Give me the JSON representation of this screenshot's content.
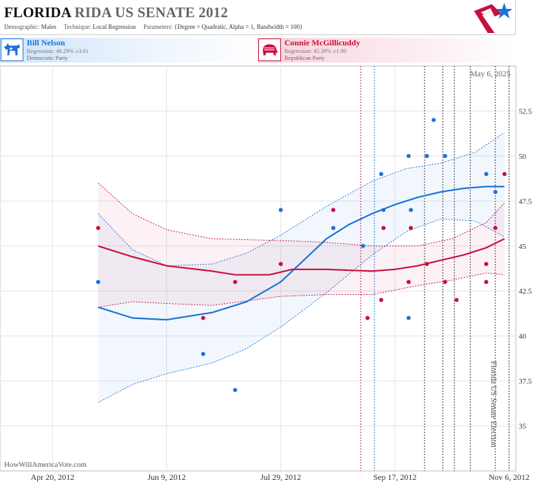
{
  "header": {
    "title_state": "FLORIDA",
    "title_rest": "RIDA US SENATE 2012",
    "demographic_label": "Demographic:",
    "demographic_value": "Males",
    "technique_label": "Technique:",
    "technique_value": "Local Regression",
    "parameters_label": "Parameters:",
    "parameters_value": "{Degree = Quadratic, Alpha = 1, Bandwidth = 100}"
  },
  "candidates": {
    "dem": {
      "name": "Bill Nelson",
      "regression": "Regression: 48.29% ±3.01",
      "party": "Democratic Party",
      "color": "#1a73d9"
    },
    "rep": {
      "name": "Connie McGillicuddy",
      "regression": "Regression: 45.39% ±1.98",
      "party": "Republican Party",
      "color": "#c8103e"
    }
  },
  "chart_date": "May 6, 2025",
  "election_label": "Florida US Senate Election",
  "watermark": "HowWillAmericaVote.com",
  "colors": {
    "dem": "#1a73d9",
    "rep": "#c8103e",
    "grid": "#e3e3e3"
  },
  "chart_data": {
    "type": "scatter",
    "x_type": "date",
    "xlim": [
      "2012-03-28",
      "2012-11-09"
    ],
    "ylim": [
      32.5,
      55
    ],
    "yticks": [
      35,
      37.5,
      40,
      42.5,
      45,
      47.5,
      50,
      52.5
    ],
    "ytick_labels": [
      "35",
      "37.5",
      "40",
      "42.5",
      "45",
      "47.5",
      "50",
      "52.5"
    ],
    "xticks": [
      "2012-04-20",
      "2012-06-09",
      "2012-07-29",
      "2012-09-17",
      "2012-11-06"
    ],
    "xtick_labels": [
      "Apr 20, 2012",
      "Jun 9, 2012",
      "Jul 29, 2012",
      "Sep 17, 2012",
      "Nov 6, 2012"
    ],
    "vlines": [
      {
        "date": "2012-09-02",
        "color": "#c8103e"
      },
      {
        "date": "2012-09-08",
        "color": "#1a73d9"
      },
      {
        "date": "2012-09-30",
        "color": "#333333"
      },
      {
        "date": "2012-10-08",
        "color": "#333333"
      },
      {
        "date": "2012-10-13",
        "color": "#333333"
      },
      {
        "date": "2012-10-20",
        "color": "#333333"
      },
      {
        "date": "2012-10-31",
        "color": "#333333"
      },
      {
        "date": "2012-11-06",
        "color": "#333333"
      }
    ],
    "series": [
      {
        "name": "Bill Nelson",
        "color": "#1a73d9",
        "points": [
          {
            "x": "2012-05-10",
            "y": 43
          },
          {
            "x": "2012-06-25",
            "y": 39
          },
          {
            "x": "2012-07-09",
            "y": 37
          },
          {
            "x": "2012-07-29",
            "y": 47
          },
          {
            "x": "2012-08-21",
            "y": 46
          },
          {
            "x": "2012-09-03",
            "y": 45
          },
          {
            "x": "2012-09-11",
            "y": 49
          },
          {
            "x": "2012-09-12",
            "y": 47
          },
          {
            "x": "2012-09-23",
            "y": 50
          },
          {
            "x": "2012-09-23",
            "y": 41
          },
          {
            "x": "2012-09-24",
            "y": 47
          },
          {
            "x": "2012-10-01",
            "y": 50
          },
          {
            "x": "2012-10-04",
            "y": 52
          },
          {
            "x": "2012-10-09",
            "y": 50
          },
          {
            "x": "2012-10-27",
            "y": 49
          },
          {
            "x": "2012-10-31",
            "y": 48
          }
        ],
        "trend": [
          {
            "x": "2012-05-10",
            "y": 41.6
          },
          {
            "x": "2012-05-25",
            "y": 41.0
          },
          {
            "x": "2012-06-09",
            "y": 40.9
          },
          {
            "x": "2012-06-29",
            "y": 41.3
          },
          {
            "x": "2012-07-14",
            "y": 41.9
          },
          {
            "x": "2012-07-29",
            "y": 43.0
          },
          {
            "x": "2012-08-08",
            "y": 44.2
          },
          {
            "x": "2012-08-18",
            "y": 45.4
          },
          {
            "x": "2012-08-28",
            "y": 46.2
          },
          {
            "x": "2012-09-07",
            "y": 46.8
          },
          {
            "x": "2012-09-17",
            "y": 47.3
          },
          {
            "x": "2012-09-27",
            "y": 47.7
          },
          {
            "x": "2012-10-07",
            "y": 48.0
          },
          {
            "x": "2012-10-17",
            "y": 48.2
          },
          {
            "x": "2012-10-27",
            "y": 48.3
          },
          {
            "x": "2012-11-04",
            "y": 48.3
          }
        ],
        "upper": [
          {
            "x": "2012-05-10",
            "y": 46.8
          },
          {
            "x": "2012-05-25",
            "y": 44.8
          },
          {
            "x": "2012-06-09",
            "y": 43.9
          },
          {
            "x": "2012-06-29",
            "y": 44.0
          },
          {
            "x": "2012-07-14",
            "y": 44.6
          },
          {
            "x": "2012-07-29",
            "y": 45.6
          },
          {
            "x": "2012-08-18",
            "y": 47.2
          },
          {
            "x": "2012-09-07",
            "y": 48.6
          },
          {
            "x": "2012-09-22",
            "y": 49.3
          },
          {
            "x": "2012-10-07",
            "y": 49.6
          },
          {
            "x": "2012-10-22",
            "y": 50.2
          },
          {
            "x": "2012-11-04",
            "y": 51.3
          }
        ],
        "lower": [
          {
            "x": "2012-05-10",
            "y": 36.3
          },
          {
            "x": "2012-05-25",
            "y": 37.3
          },
          {
            "x": "2012-06-09",
            "y": 37.9
          },
          {
            "x": "2012-06-29",
            "y": 38.5
          },
          {
            "x": "2012-07-14",
            "y": 39.3
          },
          {
            "x": "2012-07-29",
            "y": 40.5
          },
          {
            "x": "2012-08-18",
            "y": 42.4
          },
          {
            "x": "2012-09-07",
            "y": 44.5
          },
          {
            "x": "2012-09-22",
            "y": 45.8
          },
          {
            "x": "2012-10-07",
            "y": 46.5
          },
          {
            "x": "2012-10-22",
            "y": 46.4
          },
          {
            "x": "2012-11-04",
            "y": 45.5
          }
        ]
      },
      {
        "name": "Connie McGillicuddy",
        "color": "#c8103e",
        "points": [
          {
            "x": "2012-05-10",
            "y": 46
          },
          {
            "x": "2012-06-25",
            "y": 41
          },
          {
            "x": "2012-07-09",
            "y": 43
          },
          {
            "x": "2012-07-29",
            "y": 44
          },
          {
            "x": "2012-08-21",
            "y": 47
          },
          {
            "x": "2012-09-05",
            "y": 41
          },
          {
            "x": "2012-09-11",
            "y": 42
          },
          {
            "x": "2012-09-12",
            "y": 46
          },
          {
            "x": "2012-09-23",
            "y": 43
          },
          {
            "x": "2012-09-24",
            "y": 46
          },
          {
            "x": "2012-10-01",
            "y": 44
          },
          {
            "x": "2012-10-09",
            "y": 43
          },
          {
            "x": "2012-10-14",
            "y": 42
          },
          {
            "x": "2012-10-27",
            "y": 44
          },
          {
            "x": "2012-10-27",
            "y": 43
          },
          {
            "x": "2012-10-31",
            "y": 46
          },
          {
            "x": "2012-11-04",
            "y": 49
          }
        ],
        "trend": [
          {
            "x": "2012-05-10",
            "y": 45.0
          },
          {
            "x": "2012-05-25",
            "y": 44.4
          },
          {
            "x": "2012-06-09",
            "y": 43.9
          },
          {
            "x": "2012-06-29",
            "y": 43.6
          },
          {
            "x": "2012-07-09",
            "y": 43.4
          },
          {
            "x": "2012-07-24",
            "y": 43.4
          },
          {
            "x": "2012-08-03",
            "y": 43.7
          },
          {
            "x": "2012-08-18",
            "y": 43.7
          },
          {
            "x": "2012-09-07",
            "y": 43.6
          },
          {
            "x": "2012-09-17",
            "y": 43.7
          },
          {
            "x": "2012-09-27",
            "y": 43.9
          },
          {
            "x": "2012-10-07",
            "y": 44.2
          },
          {
            "x": "2012-10-17",
            "y": 44.5
          },
          {
            "x": "2012-10-27",
            "y": 44.9
          },
          {
            "x": "2012-11-04",
            "y": 45.4
          }
        ],
        "upper": [
          {
            "x": "2012-05-10",
            "y": 48.5
          },
          {
            "x": "2012-05-25",
            "y": 46.8
          },
          {
            "x": "2012-06-09",
            "y": 45.9
          },
          {
            "x": "2012-06-29",
            "y": 45.4
          },
          {
            "x": "2012-07-29",
            "y": 45.3
          },
          {
            "x": "2012-08-18",
            "y": 45.2
          },
          {
            "x": "2012-09-07",
            "y": 45.0
          },
          {
            "x": "2012-09-27",
            "y": 45.0
          },
          {
            "x": "2012-10-12",
            "y": 45.4
          },
          {
            "x": "2012-10-27",
            "y": 46.3
          },
          {
            "x": "2012-11-04",
            "y": 47.4
          }
        ],
        "lower": [
          {
            "x": "2012-05-10",
            "y": 41.6
          },
          {
            "x": "2012-05-25",
            "y": 41.9
          },
          {
            "x": "2012-06-09",
            "y": 41.8
          },
          {
            "x": "2012-06-29",
            "y": 41.7
          },
          {
            "x": "2012-07-29",
            "y": 42.2
          },
          {
            "x": "2012-08-18",
            "y": 42.3
          },
          {
            "x": "2012-09-07",
            "y": 42.3
          },
          {
            "x": "2012-09-27",
            "y": 42.8
          },
          {
            "x": "2012-10-12",
            "y": 43.1
          },
          {
            "x": "2012-10-27",
            "y": 43.5
          },
          {
            "x": "2012-11-04",
            "y": 43.4
          }
        ]
      }
    ]
  }
}
